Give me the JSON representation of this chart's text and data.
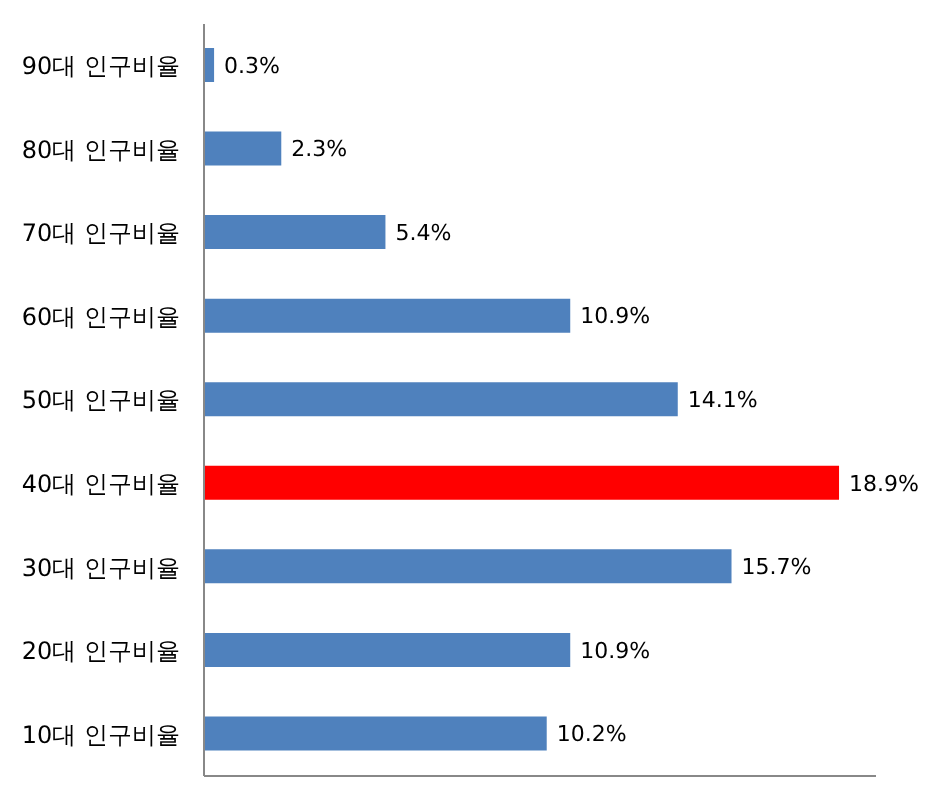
{
  "chart_data": {
    "type": "bar",
    "orientation": "horizontal",
    "categories": [
      "90대 인구비율",
      "80대 인구비율",
      "70대 인구비율",
      "60대 인구비율",
      "50대 인구비율",
      "40대 인구비율",
      "30대 인구비율",
      "20대 인구비율",
      "10대 인구비율"
    ],
    "values": [
      0.3,
      2.3,
      5.4,
      10.9,
      14.1,
      18.9,
      15.7,
      10.9,
      10.2
    ],
    "value_labels": [
      "0.3%",
      "2.3%",
      "5.4%",
      "10.9%",
      "14.1%",
      "18.9%",
      "15.7%",
      "10.9%",
      "10.2%"
    ],
    "colors": [
      "#4f81bd",
      "#4f81bd",
      "#4f81bd",
      "#4f81bd",
      "#4f81bd",
      "#ff0000",
      "#4f81bd",
      "#4f81bd",
      "#4f81bd"
    ],
    "tick_labels": "y"
  }
}
